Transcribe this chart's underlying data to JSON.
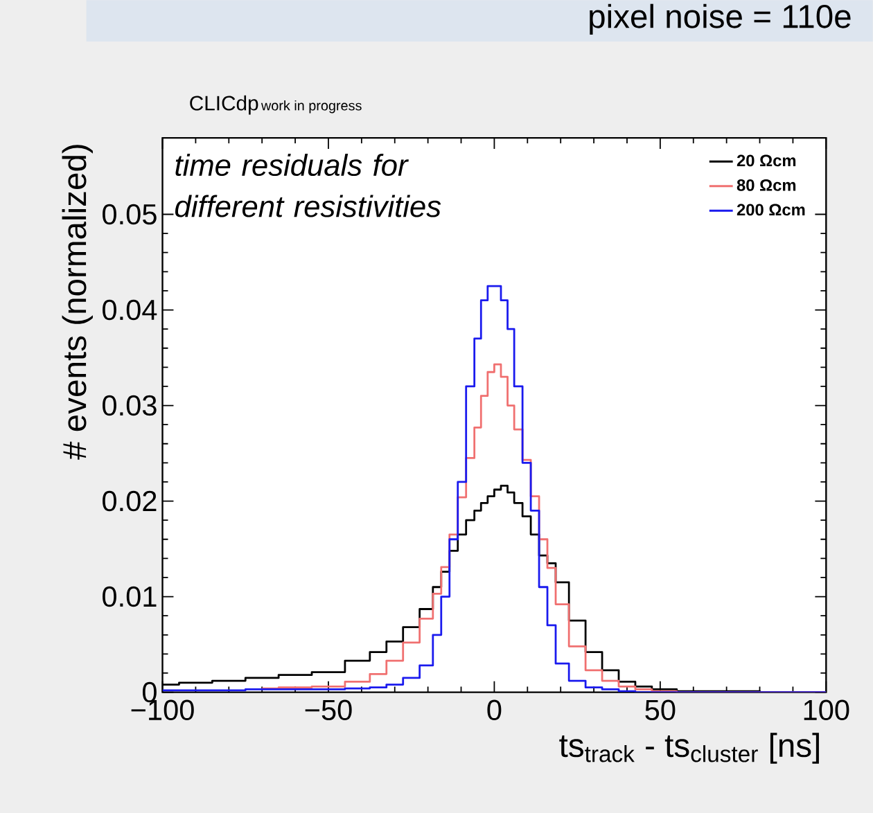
{
  "chart_data": {
    "type": "step",
    "title": "CLICdp",
    "subtitle": "work in progress",
    "xlabel": "ts$_{track}$ - ts$_{cluster}$ [ns]",
    "ylabel": "# events (normalized)",
    "annotations": [
      "pixel noise = 110e",
      "time residuals for different resistivities"
    ],
    "x": [
      -100,
      -90,
      -80,
      -70,
      -60,
      -50,
      -40,
      -35,
      -30,
      -25,
      -20,
      -17,
      -15,
      -12,
      -10,
      -7,
      -5,
      -3,
      -1,
      1,
      3,
      5,
      7,
      10,
      12,
      15,
      17,
      20,
      25,
      30,
      35,
      40,
      45,
      50,
      60,
      100
    ],
    "series": [
      {
        "name": "20 Ωcm",
        "color": "#000000",
        "values": [
          0.0008,
          0.001,
          0.0012,
          0.0015,
          0.0018,
          0.0021,
          0.0033,
          0.0042,
          0.0053,
          0.0068,
          0.0087,
          0.011,
          0.0126,
          0.0148,
          0.0165,
          0.018,
          0.019,
          0.0198,
          0.0205,
          0.0212,
          0.0216,
          0.0209,
          0.0198,
          0.0184,
          0.0165,
          0.0143,
          0.0135,
          0.0115,
          0.0075,
          0.0042,
          0.0023,
          0.0011,
          0.0006,
          0.0003,
          0.0001,
          0
        ]
      },
      {
        "name": "80 Ωcm",
        "color": "#f07070",
        "values": [
          null,
          null,
          null,
          0.0004,
          0.0005,
          0.0006,
          0.0011,
          0.0019,
          0.0033,
          0.0052,
          0.0077,
          0.0103,
          0.0131,
          0.0165,
          0.0204,
          0.0245,
          0.0277,
          0.031,
          0.0335,
          0.0343,
          0.033,
          0.03,
          0.0275,
          0.0243,
          0.0205,
          0.016,
          0.013,
          0.0092,
          0.0048,
          0.0023,
          0.0012,
          0.0006,
          0.0003,
          0.0001,
          0,
          0
        ]
      },
      {
        "name": "200 Ωcm",
        "color": "#1a1aee",
        "values": [
          0.0002,
          0.0002,
          0.0002,
          0.0003,
          0.0003,
          0.0003,
          0.0004,
          0.0005,
          0.0008,
          0.0015,
          0.0028,
          0.006,
          0.01,
          0.016,
          0.022,
          0.032,
          0.037,
          0.041,
          0.0425,
          0.0425,
          0.041,
          0.038,
          0.032,
          0.024,
          0.019,
          0.011,
          0.007,
          0.003,
          0.0012,
          0.0005,
          0.0003,
          0.0001,
          0,
          0,
          0,
          0
        ]
      }
    ],
    "xlim": [
      -100,
      100
    ],
    "ylim": [
      0,
      0.058
    ],
    "xticks": [
      {
        "value": -100,
        "label": "−100"
      },
      {
        "value": -50,
        "label": "−50"
      },
      0,
      50,
      100
    ],
    "yticks": [
      0,
      0.01,
      0.02,
      0.03,
      0.04,
      0.05
    ],
    "legend": "top right",
    "grid": false
  }
}
